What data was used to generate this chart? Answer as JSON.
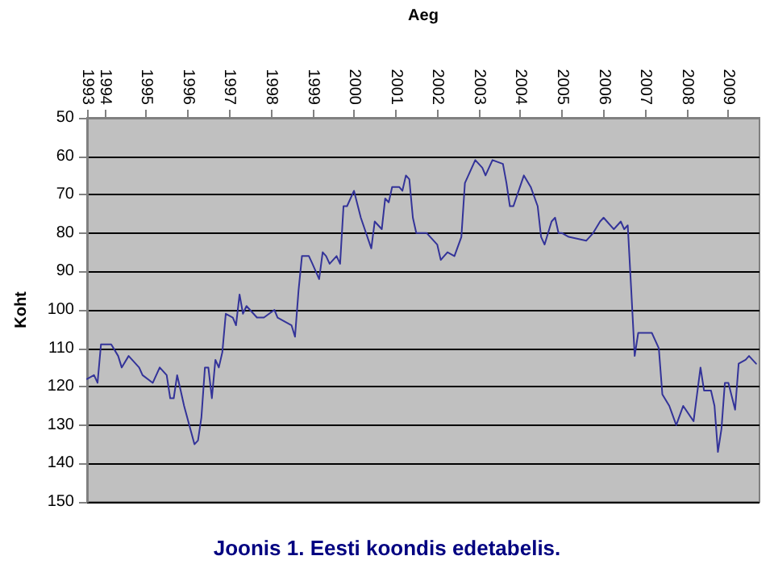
{
  "chart_data": {
    "type": "line",
    "xlabel": "Aeg",
    "ylabel": "Koht",
    "annotations": [
      "Joonis 1. Eesti koondis edetabelis."
    ],
    "x": [
      "1993-08",
      "1993-10",
      "1993-11",
      "1993-12",
      "1994-03",
      "1994-05",
      "1994-06",
      "1994-08",
      "1994-11",
      "1994-12",
      "1995-03",
      "1995-05",
      "1995-07",
      "1995-08",
      "1995-09",
      "1995-10",
      "1995-11",
      "1995-12",
      "1996-03",
      "1996-04",
      "1996-05",
      "1996-06",
      "1996-07",
      "1996-08",
      "1996-09",
      "1996-10",
      "1996-11",
      "1996-12",
      "1997-02",
      "1997-03",
      "1997-04",
      "1997-05",
      "1997-06",
      "1997-09",
      "1997-11",
      "1998-02",
      "1998-03",
      "1998-05",
      "1998-07",
      "1998-08",
      "1998-09",
      "1998-10",
      "1998-12",
      "1999-01",
      "1999-03",
      "1999-04",
      "1999-05",
      "1999-06",
      "1999-08",
      "1999-09",
      "1999-10",
      "1999-11",
      "2000-01",
      "2000-03",
      "2000-06",
      "2000-07",
      "2000-09",
      "2000-10",
      "2000-11",
      "2000-12",
      "2001-02",
      "2001-03",
      "2001-04",
      "2001-05",
      "2001-06",
      "2001-07",
      "2001-08",
      "2001-10",
      "2002-01",
      "2002-02",
      "2002-04",
      "2002-06",
      "2002-08",
      "2002-09",
      "2002-12",
      "2003-02",
      "2003-03",
      "2003-05",
      "2003-08",
      "2003-09",
      "2003-10",
      "2003-11",
      "2004-02",
      "2004-04",
      "2004-06",
      "2004-07",
      "2004-08",
      "2004-10",
      "2004-11",
      "2004-12",
      "2005-01",
      "2005-03",
      "2005-08",
      "2005-10",
      "2005-12",
      "2006-01",
      "2006-04",
      "2006-06",
      "2006-07",
      "2006-08",
      "2006-09",
      "2006-10",
      "2006-11",
      "2007-03",
      "2007-05",
      "2007-06",
      "2007-08",
      "2007-10",
      "2007-12",
      "2008-03",
      "2008-05",
      "2008-06",
      "2008-08",
      "2008-09",
      "2008-10",
      "2008-11",
      "2008-12",
      "2009-01",
      "2009-03",
      "2009-04",
      "2009-06",
      "2009-07",
      "2009-09"
    ],
    "series": [
      {
        "color": "#333399",
        "values": [
          118,
          117,
          119,
          109,
          109,
          112,
          115,
          112,
          115,
          117,
          119,
          115,
          117,
          123,
          123,
          117,
          121,
          125,
          135,
          134,
          128,
          115,
          115,
          123,
          113,
          115,
          111,
          101,
          102,
          104,
          96,
          101,
          99,
          102,
          102,
          100,
          102,
          103,
          104,
          107,
          95,
          86,
          86,
          88,
          92,
          85,
          86,
          88,
          86,
          88,
          73,
          73,
          69,
          76,
          84,
          77,
          79,
          71,
          72,
          68,
          68,
          69,
          65,
          66,
          76,
          80,
          80,
          80,
          83,
          87,
          85,
          86,
          81,
          67,
          61,
          63,
          65,
          61,
          62,
          67,
          73,
          73,
          65,
          68,
          73,
          81,
          83,
          77,
          76,
          80,
          80,
          81,
          82,
          80,
          77,
          76,
          79,
          77,
          79,
          78,
          95,
          112,
          106,
          106,
          110,
          122,
          125,
          130,
          125,
          129,
          115,
          121,
          121,
          125,
          137,
          131,
          119,
          119,
          126,
          114,
          113,
          112,
          114
        ]
      }
    ],
    "xlim": [
      "1993-08",
      "2009-10"
    ],
    "xticks": [
      {
        "value": "1993-08",
        "label": "1993"
      },
      "1994",
      "1995",
      "1996",
      "1997",
      "1998",
      "1999",
      "2000",
      "2001",
      "2002",
      "2003",
      "2004",
      "2005",
      "2006",
      "2007",
      "2008",
      "2009"
    ],
    "ylim": [
      150,
      50
    ],
    "yticks": [
      50,
      60,
      70,
      80,
      90,
      100,
      110,
      120,
      130,
      140,
      150
    ],
    "grid": "y",
    "marker": "none",
    "line_style": "solid"
  }
}
